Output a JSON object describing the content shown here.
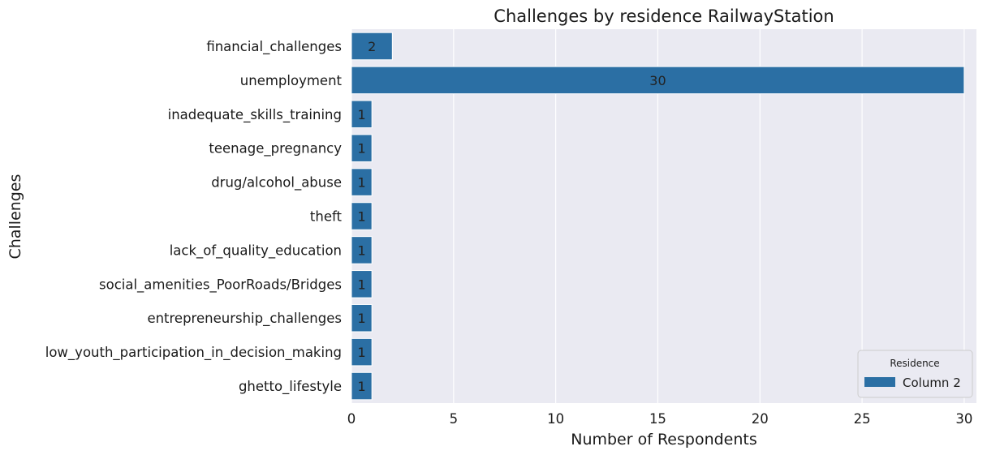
{
  "chart_data": {
    "type": "bar",
    "orientation": "horizontal",
    "title": "Challenges by residence RailwayStation",
    "xlabel": "Number of Respondents",
    "ylabel": "Challenges",
    "xlim": [
      0,
      30.6
    ],
    "xticks": [
      0,
      5,
      10,
      15,
      20,
      25,
      30
    ],
    "grid": true,
    "categories": [
      "financial_challenges",
      "unemployment",
      "inadequate_skills_training",
      "teenage_pregnancy",
      "drug/alcohol_abuse",
      "theft",
      "lack_of_quality_education",
      "social_amenities_PoorRoads/Bridges",
      "entrepreneurship_challenges",
      "low_youth_participation_in_decision_making",
      "ghetto_lifestyle"
    ],
    "series": [
      {
        "name": "Column 2",
        "values": [
          2,
          30,
          1,
          1,
          1,
          1,
          1,
          1,
          1,
          1,
          1
        ],
        "color": "#2b6fa4"
      }
    ],
    "legend": {
      "title": "Residence",
      "placement": "bottom-right"
    },
    "background_color": "#eaeaf2",
    "grid_color": "#ffffff"
  }
}
